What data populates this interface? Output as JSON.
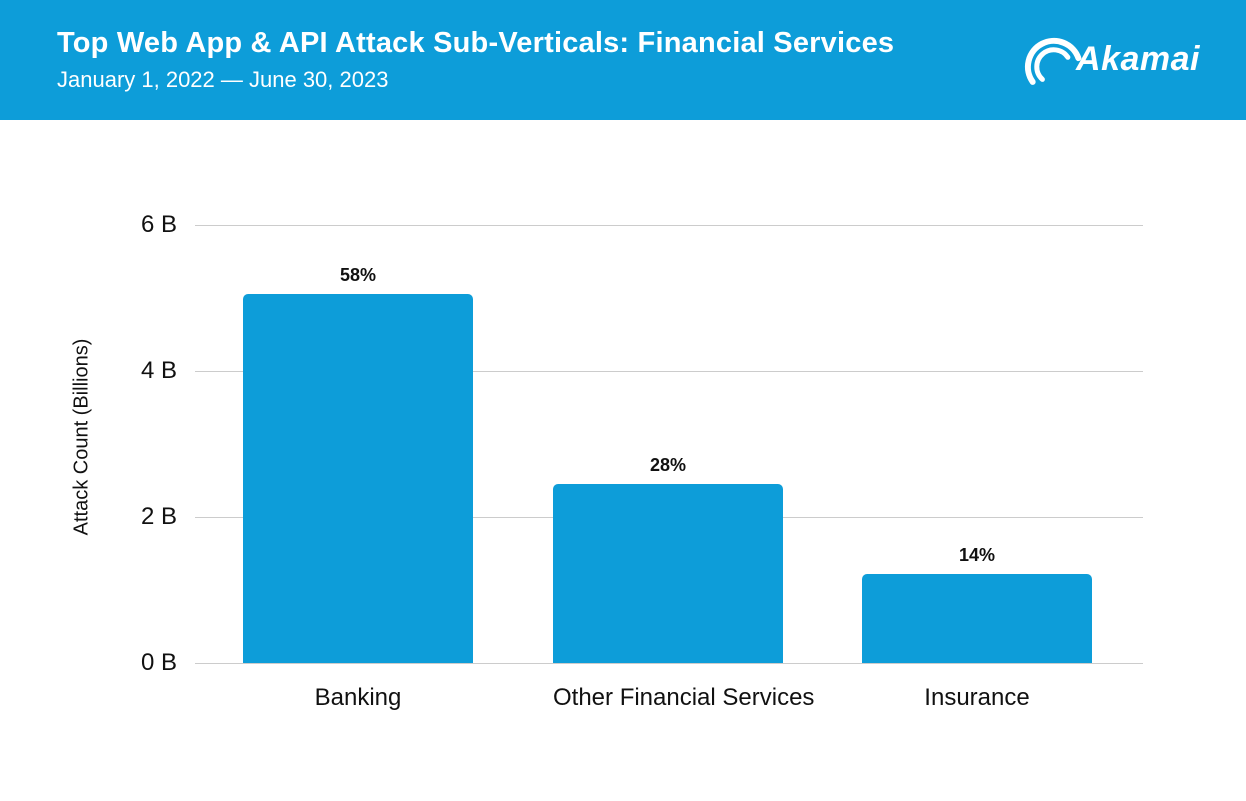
{
  "header": {
    "title": "Top Web App & API Attack Sub-Verticals: Financial Services",
    "subtitle": "January 1, 2022 — June 30, 2023",
    "logo_text": "Akamai",
    "background_color": "#0d9dd9",
    "text_color": "#ffffff"
  },
  "chart_data": {
    "type": "bar",
    "title": "Top Web App & API Attack Sub-Verticals: Financial Services",
    "subtitle": "January 1, 2022 — June 30, 2023",
    "categories": [
      "Banking",
      "Other Financial Services",
      "Insurance"
    ],
    "values_billions": [
      5.05,
      2.45,
      1.22
    ],
    "bar_labels": [
      "58%",
      "28%",
      "14%"
    ],
    "ylabel": "Attack Count (Billions)",
    "yticks": [
      "6 B",
      "4 B",
      "2 B",
      "0 B"
    ],
    "ytick_values": [
      6,
      4,
      2,
      0
    ],
    "ylim": [
      0,
      6
    ],
    "bar_color": "#0d9dd9",
    "gridline_color": "#cccccc",
    "grid": "horizontal",
    "legend": "none"
  }
}
